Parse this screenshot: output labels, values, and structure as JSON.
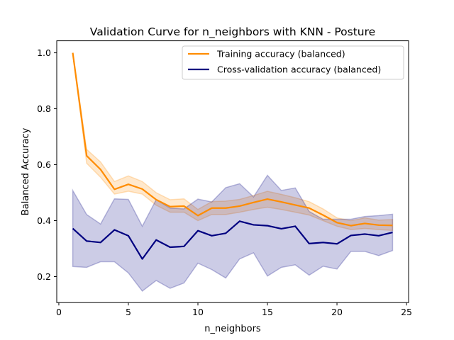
{
  "chart_data": {
    "type": "line",
    "title": "Validation Curve for n_neighbors with KNN - Posture",
    "xlabel": "n_neighbors",
    "ylabel": "Balanced Accuracy",
    "xlim": [
      -0.15,
      25.15
    ],
    "ylim": [
      0.107,
      1.043
    ],
    "xticks": [
      0,
      5,
      10,
      15,
      20,
      25
    ],
    "yticks": [
      0.2,
      0.4,
      0.6,
      0.8,
      1.0
    ],
    "xtick_labels": [
      "0",
      "5",
      "10",
      "15",
      "20",
      "25"
    ],
    "ytick_labels": [
      "0.2",
      "0.4",
      "0.6",
      "0.8",
      "1.0"
    ],
    "grid": false,
    "legend_position": "top-right",
    "x": [
      1,
      2,
      3,
      4,
      5,
      6,
      7,
      8,
      9,
      10,
      11,
      12,
      13,
      14,
      15,
      16,
      17,
      18,
      19,
      20,
      21,
      22,
      23,
      24
    ],
    "series": [
      {
        "name": "Training accuracy (balanced)",
        "color": "#ff8c00",
        "values": [
          1.0,
          0.632,
          0.583,
          0.512,
          0.53,
          0.513,
          0.475,
          0.45,
          0.452,
          0.418,
          0.445,
          0.445,
          0.452,
          0.465,
          0.477,
          0.467,
          0.456,
          0.445,
          0.42,
          0.393,
          0.382,
          0.39,
          0.384,
          0.383
        ],
        "lower": [
          1.0,
          0.605,
          0.555,
          0.495,
          0.505,
          0.495,
          0.455,
          0.43,
          0.43,
          0.4,
          0.422,
          0.422,
          0.43,
          0.44,
          0.448,
          0.44,
          0.43,
          0.42,
          0.4,
          0.38,
          0.368,
          0.372,
          0.368,
          0.365
        ],
        "upper": [
          1.0,
          0.655,
          0.61,
          0.54,
          0.56,
          0.54,
          0.5,
          0.475,
          0.478,
          0.44,
          0.468,
          0.47,
          0.476,
          0.49,
          0.505,
          0.494,
          0.482,
          0.468,
          0.442,
          0.41,
          0.4,
          0.41,
          0.402,
          0.404
        ]
      },
      {
        "name": "Cross-validation accuracy (balanced)",
        "color": "#000080",
        "values": [
          0.372,
          0.327,
          0.322,
          0.367,
          0.346,
          0.263,
          0.331,
          0.305,
          0.308,
          0.364,
          0.346,
          0.355,
          0.398,
          0.385,
          0.382,
          0.371,
          0.38,
          0.318,
          0.322,
          0.317,
          0.347,
          0.352,
          0.346,
          0.358
        ],
        "lower": [
          0.236,
          0.233,
          0.253,
          0.253,
          0.213,
          0.148,
          0.186,
          0.158,
          0.177,
          0.248,
          0.225,
          0.195,
          0.263,
          0.285,
          0.202,
          0.233,
          0.242,
          0.205,
          0.237,
          0.227,
          0.29,
          0.29,
          0.275,
          0.293
        ],
        "upper": [
          0.508,
          0.422,
          0.388,
          0.478,
          0.476,
          0.38,
          0.475,
          0.445,
          0.442,
          0.477,
          0.467,
          0.518,
          0.532,
          0.485,
          0.562,
          0.508,
          0.517,
          0.433,
          0.405,
          0.405,
          0.405,
          0.415,
          0.418,
          0.423
        ]
      }
    ]
  }
}
